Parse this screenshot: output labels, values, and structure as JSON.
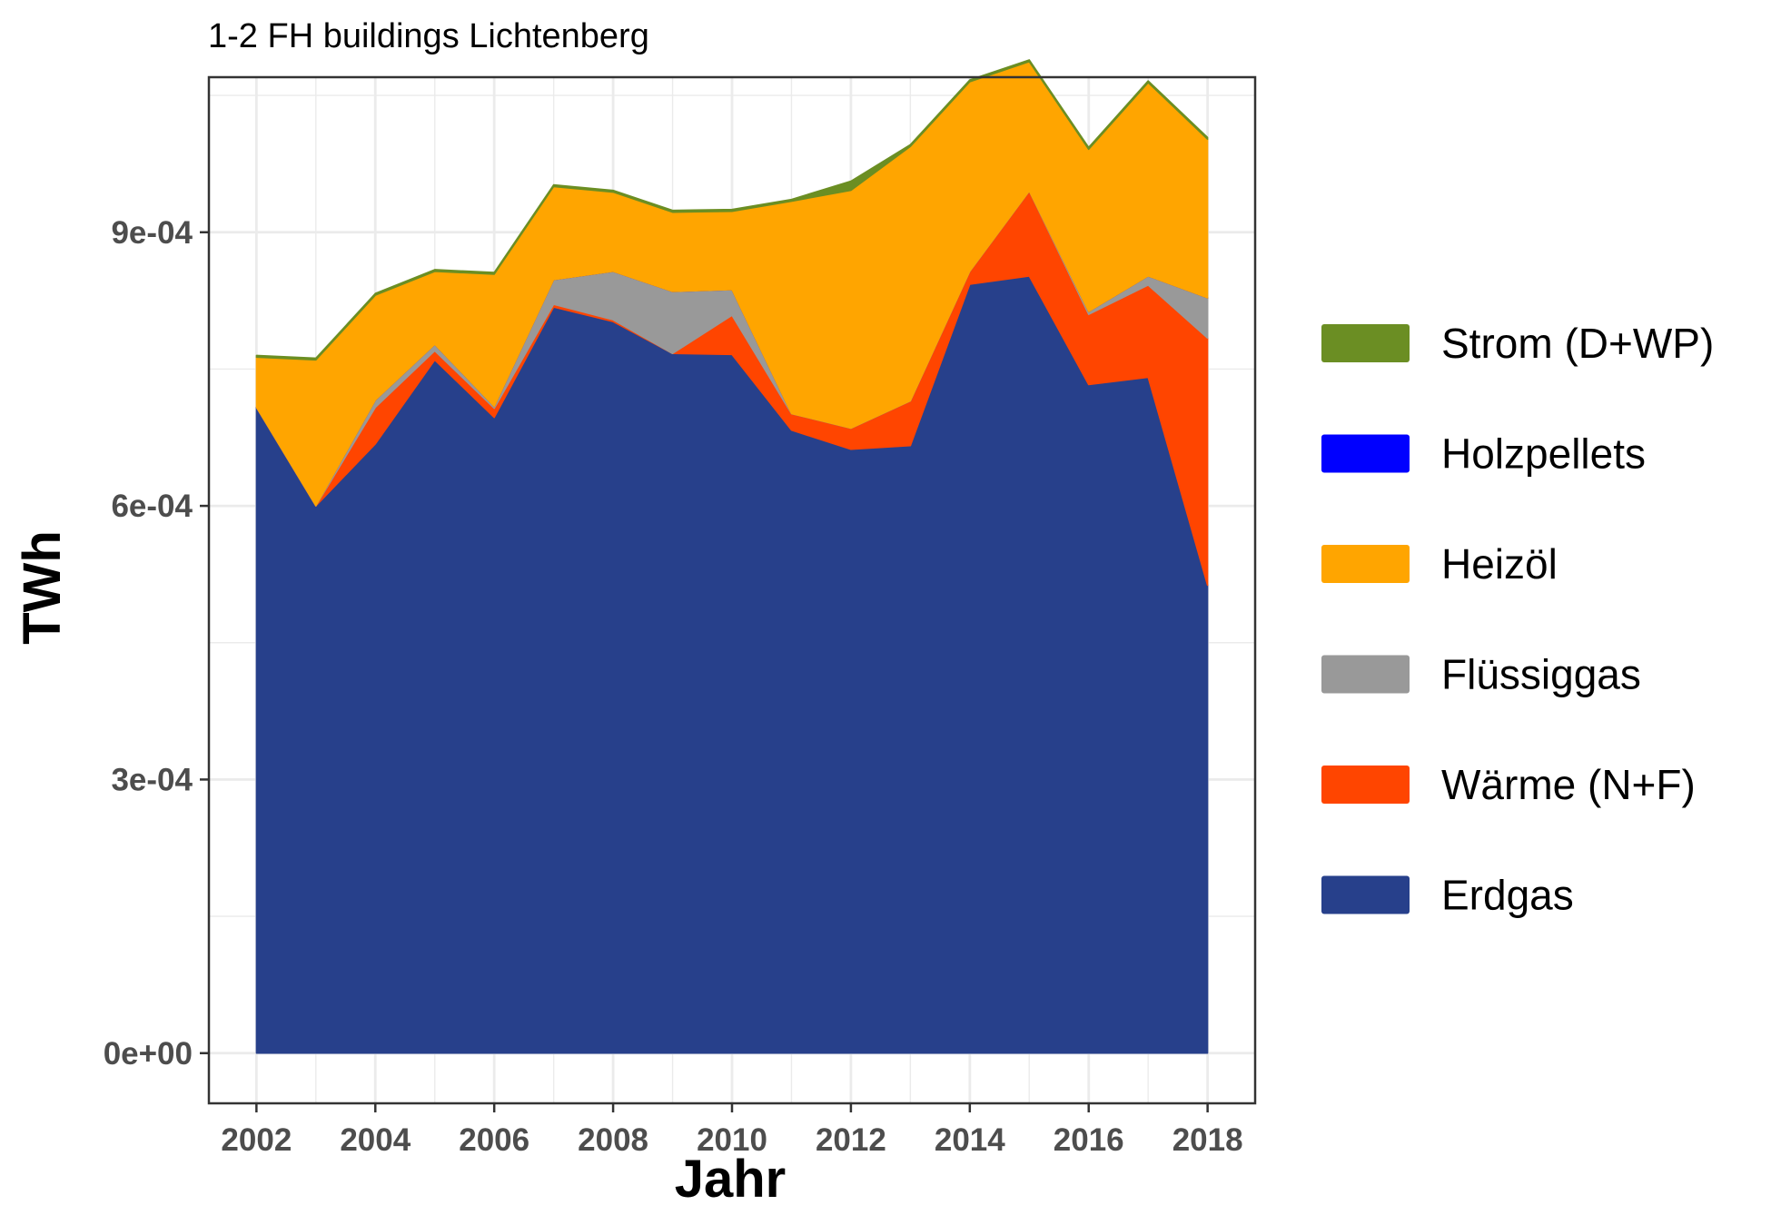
{
  "chart_data": {
    "type": "area",
    "stacked": true,
    "title": "1-2 FH buildings Lichtenberg",
    "xlabel": "Jahr",
    "ylabel": "TWh",
    "x": [
      2002,
      2003,
      2004,
      2005,
      2006,
      2007,
      2008,
      2009,
      2010,
      2011,
      2012,
      2013,
      2014,
      2015,
      2016,
      2017,
      2018
    ],
    "xlim": [
      2001.2,
      2018.8
    ],
    "ylim": [
      -5.5e-05,
      0.00107
    ],
    "x_ticks": [
      2002,
      2004,
      2006,
      2008,
      2010,
      2012,
      2014,
      2016,
      2018
    ],
    "x_tick_labels": [
      "2002",
      "2004",
      "2006",
      "2008",
      "2010",
      "2012",
      "2014",
      "2016",
      "2018"
    ],
    "y_ticks": [
      0,
      0.0003,
      0.0006,
      0.0009
    ],
    "y_tick_labels": [
      "0e+00",
      "3e-04",
      "6e-04",
      "9e-04"
    ],
    "grid": true,
    "legend_position": "right",
    "series": [
      {
        "name": "Erdgas",
        "color": "#27408b",
        "values": [
          0.000708,
          0.0006,
          0.000668,
          0.00076,
          0.000697,
          0.000818,
          0.000802,
          0.000767,
          0.000766,
          0.000683,
          0.000662,
          0.000666,
          0.000843,
          0.000852,
          0.000733,
          0.000741,
          0.000513
        ]
      },
      {
        "name": "Wärme (N+F)",
        "color": "#ff4500",
        "values": [
          0.0,
          0.0,
          4e-05,
          1e-05,
          1e-05,
          3e-06,
          2e-06,
          0.0,
          4.3e-05,
          1.8e-05,
          2.3e-05,
          4.9e-05,
          1.4e-05,
          9.3e-05,
          7.7e-05,
          0.000101,
          0.000271
        ]
      },
      {
        "name": "Flüssiggas",
        "color": "#999999",
        "values": [
          0.0,
          0.0,
          8e-06,
          7e-06,
          2e-06,
          2.7e-05,
          5.3e-05,
          6.8e-05,
          2.8e-05,
          0.0,
          0.0,
          0.0,
          0.0,
          0.0,
          3e-06,
          1e-05,
          4.4e-05
        ]
      },
      {
        "name": "Holzpellets",
        "color": "#0000ff",
        "values": [
          0,
          0,
          0,
          0,
          0,
          0,
          0,
          0,
          0,
          0,
          0,
          0,
          0,
          0,
          0,
          0,
          0
        ]
      },
      {
        "name": "Heizöl",
        "color": "#ffa500",
        "values": [
          5.5e-05,
          0.00016,
          0.000115,
          8e-05,
          0.000145,
          0.000102,
          8.7e-05,
          8.7e-05,
          8.6e-05,
          0.000233,
          0.000261,
          0.000279,
          0.000208,
          0.000142,
          0.000178,
          0.000212,
          0.000174
        ]
      },
      {
        "name": "Strom (D+WP)",
        "color": "#6b8e23",
        "values": [
          2e-06,
          2e-06,
          2e-06,
          2e-06,
          2e-06,
          2e-06,
          2e-06,
          2e-06,
          2e-06,
          2e-06,
          1e-05,
          2e-06,
          2e-06,
          2e-06,
          2e-06,
          2e-06,
          2e-06
        ]
      }
    ],
    "legend_order": [
      "Strom (D+WP)",
      "Holzpellets",
      "Heizöl",
      "Flüssiggas",
      "Wärme (N+F)",
      "Erdgas"
    ]
  }
}
